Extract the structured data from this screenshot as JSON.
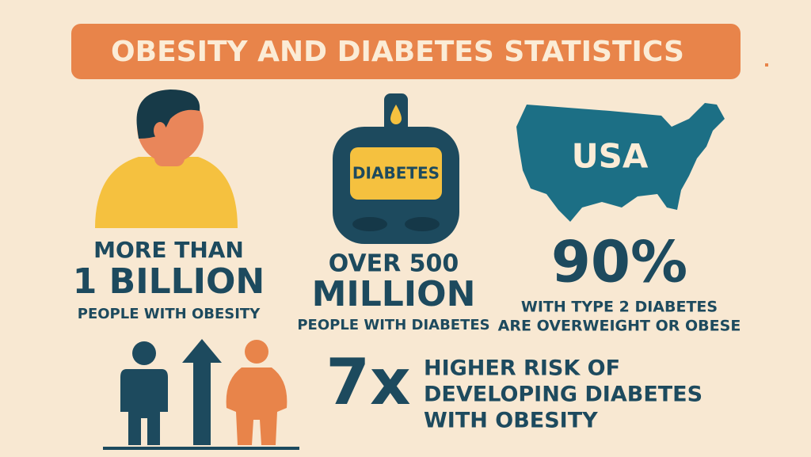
{
  "header": {
    "title": "OBESITY AND DIABETES STATISTICS"
  },
  "stats": [
    {
      "lead": "MORE THAN",
      "figure": "1 BILLION",
      "caption": "PEOPLE WITH OBESITY"
    },
    {
      "device_label": "DIABETES",
      "lead": "OVER 500",
      "figure": "MILLION",
      "caption": "PEOPLE WITH DIABETES"
    },
    {
      "map_label": "USA",
      "figure": "90%",
      "caption_lines": [
        "WITH TYPE 2 DIABETES",
        "ARE OVERWEIGHT OR OBESE"
      ]
    },
    {
      "figure": "7x",
      "caption_lines": [
        "HIGHER RISK OF",
        "DEVELOPING DIABETES",
        "WITH OBESITY"
      ]
    }
  ]
}
